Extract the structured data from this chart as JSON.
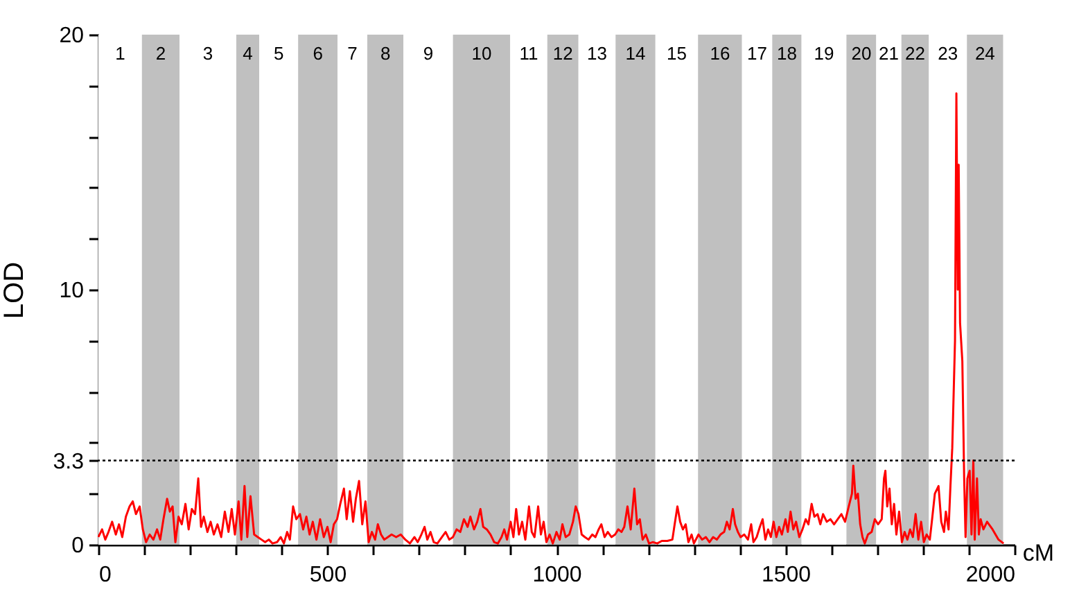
{
  "chart_data": {
    "type": "line",
    "xlabel": "cM",
    "ylabel": "LOD",
    "xlim": [
      0,
      2000
    ],
    "ylim": [
      0,
      20
    ],
    "xticks": [
      0,
      {
        "value": 100,
        "label": null
      },
      {
        "value": 200,
        "label": null
      },
      {
        "value": 300,
        "label": null
      },
      {
        "value": 400,
        "label": null
      },
      500,
      {
        "value": 600,
        "label": null
      },
      {
        "value": 700,
        "label": null
      },
      {
        "value": 800,
        "label": null
      },
      {
        "value": 900,
        "label": null
      },
      1000,
      {
        "value": 1100,
        "label": null
      },
      {
        "value": 1200,
        "label": null
      },
      {
        "value": 1300,
        "label": null
      },
      {
        "value": 1400,
        "label": null
      },
      1500,
      {
        "value": 1600,
        "label": null
      },
      {
        "value": 1700,
        "label": null
      },
      {
        "value": 1800,
        "label": null
      },
      {
        "value": 1900,
        "label": null
      },
      2000
    ],
    "yticks": [
      0,
      {
        "value": 2,
        "label": null
      },
      3.3,
      {
        "value": 4,
        "label": null
      },
      {
        "value": 6,
        "label": null
      },
      {
        "value": 8,
        "label": null
      },
      10,
      {
        "value": 12,
        "label": null
      },
      {
        "value": 14,
        "label": null
      },
      {
        "value": 16,
        "label": null
      },
      {
        "value": 18,
        "label": null
      },
      20
    ],
    "ref_lines": [
      {
        "axis": "y",
        "value": 3.3,
        "color": "#000000",
        "line_style": "dotted"
      }
    ],
    "bands": [
      {
        "axis": "x",
        "from": 0,
        "to": 95,
        "label": "1",
        "color": "#ffffff"
      },
      {
        "axis": "x",
        "from": 95,
        "to": 177,
        "label": "2",
        "color": "#c0c0c0"
      },
      {
        "axis": "x",
        "from": 177,
        "to": 301,
        "label": "3",
        "color": "#ffffff"
      },
      {
        "axis": "x",
        "from": 301,
        "to": 351,
        "label": "4",
        "color": "#c0c0c0"
      },
      {
        "axis": "x",
        "from": 351,
        "to": 436,
        "label": "5",
        "color": "#ffffff"
      },
      {
        "axis": "x",
        "from": 436,
        "to": 522,
        "label": "6",
        "color": "#c0c0c0"
      },
      {
        "axis": "x",
        "from": 522,
        "to": 587,
        "label": "7",
        "color": "#ffffff"
      },
      {
        "axis": "x",
        "from": 587,
        "to": 666,
        "label": "8",
        "color": "#c0c0c0"
      },
      {
        "axis": "x",
        "from": 666,
        "to": 774,
        "label": "9",
        "color": "#ffffff"
      },
      {
        "axis": "x",
        "from": 774,
        "to": 899,
        "label": "10",
        "color": "#c0c0c0"
      },
      {
        "axis": "x",
        "from": 899,
        "to": 980,
        "label": "11",
        "color": "#ffffff"
      },
      {
        "axis": "x",
        "from": 980,
        "to": 1048,
        "label": "12",
        "color": "#c0c0c0"
      },
      {
        "axis": "x",
        "from": 1048,
        "to": 1129,
        "label": "13",
        "color": "#ffffff"
      },
      {
        "axis": "x",
        "from": 1129,
        "to": 1216,
        "label": "14",
        "color": "#c0c0c0"
      },
      {
        "axis": "x",
        "from": 1216,
        "to": 1309,
        "label": "15",
        "color": "#ffffff"
      },
      {
        "axis": "x",
        "from": 1309,
        "to": 1405,
        "label": "16",
        "color": "#c0c0c0"
      },
      {
        "axis": "x",
        "from": 1405,
        "to": 1471,
        "label": "17",
        "color": "#ffffff"
      },
      {
        "axis": "x",
        "from": 1471,
        "to": 1535,
        "label": "18",
        "color": "#c0c0c0"
      },
      {
        "axis": "x",
        "from": 1535,
        "to": 1633,
        "label": "19",
        "color": "#ffffff"
      },
      {
        "axis": "x",
        "from": 1633,
        "to": 1698,
        "label": "20",
        "color": "#c0c0c0"
      },
      {
        "axis": "x",
        "from": 1698,
        "to": 1753,
        "label": "21",
        "color": "#ffffff"
      },
      {
        "axis": "x",
        "from": 1753,
        "to": 1813,
        "label": "22",
        "color": "#c0c0c0"
      },
      {
        "axis": "x",
        "from": 1813,
        "to": 1896,
        "label": "23",
        "color": "#ffffff"
      },
      {
        "axis": "x",
        "from": 1896,
        "to": 1975,
        "label": "24",
        "color": "#c0c0c0"
      }
    ],
    "x": [
      0,
      8,
      15,
      22,
      30,
      38,
      45,
      52,
      60,
      68,
      75,
      82,
      90,
      97,
      104,
      112,
      120,
      128,
      135,
      142,
      150,
      156,
      162,
      168,
      175,
      182,
      190,
      197,
      204,
      211,
      218,
      224,
      230,
      238,
      245,
      252,
      260,
      268,
      276,
      284,
      291,
      298,
      306,
      312,
      319,
      325,
      332,
      340,
      348,
      356,
      364,
      372,
      380,
      390,
      398,
      405,
      412,
      418,
      425,
      432,
      440,
      447,
      454,
      461,
      468,
      476,
      484,
      492,
      500,
      507,
      514,
      521,
      528,
      536,
      542,
      549,
      556,
      562,
      569,
      576,
      583,
      590,
      597,
      604,
      610,
      617,
      624,
      632,
      640,
      650,
      660,
      670,
      680,
      690,
      697,
      705,
      712,
      718,
      725,
      732,
      740,
      750,
      758,
      766,
      774,
      782,
      790,
      798,
      806,
      812,
      820,
      827,
      834,
      840,
      848,
      856,
      864,
      872,
      880,
      886,
      892,
      900,
      906,
      912,
      918,
      925,
      932,
      940,
      946,
      952,
      960,
      966,
      972,
      978,
      985,
      992,
      1000,
      1007,
      1013,
      1020,
      1028,
      1036,
      1042,
      1048,
      1055,
      1062,
      1070,
      1078,
      1085,
      1092,
      1098,
      1105,
      1112,
      1120,
      1128,
      1135,
      1142,
      1148,
      1155,
      1162,
      1170,
      1176,
      1182,
      1188,
      1195,
      1202,
      1210,
      1220,
      1230,
      1242,
      1253,
      1258,
      1264,
      1270,
      1276,
      1282,
      1288,
      1295,
      1300,
      1310,
      1318,
      1326,
      1334,
      1342,
      1350,
      1358,
      1366,
      1372,
      1378,
      1385,
      1390,
      1396,
      1402,
      1410,
      1418,
      1425,
      1430,
      1437,
      1444,
      1450,
      1456,
      1462,
      1468,
      1474,
      1480,
      1486,
      1492,
      1500,
      1505,
      1511,
      1517,
      1523,
      1530,
      1537,
      1544,
      1550,
      1557,
      1563,
      1570,
      1576,
      1582,
      1590,
      1598,
      1606,
      1614,
      1622,
      1630,
      1638,
      1645,
      1648,
      1653,
      1658,
      1663,
      1668,
      1673,
      1680,
      1688,
      1695,
      1702,
      1710,
      1715,
      1718,
      1722,
      1727,
      1732,
      1737,
      1742,
      1748,
      1754,
      1760,
      1766,
      1772,
      1778,
      1784,
      1790,
      1796,
      1802,
      1808,
      1815,
      1820,
      1826,
      1834,
      1840,
      1846,
      1850,
      1856,
      1860,
      1864,
      1870,
      1873,
      1876,
      1878,
      1881,
      1886,
      1890,
      1893,
      1897,
      1902,
      1906,
      1910,
      1913,
      1918,
      1922,
      1926,
      1932,
      1940,
      1952,
      1965,
      1976
    ],
    "series": [
      {
        "color": "#ff0000",
        "values": [
          0.3,
          0.6,
          0.2,
          0.5,
          0.9,
          0.4,
          0.8,
          0.3,
          1.1,
          1.5,
          1.7,
          1.2,
          1.5,
          0.6,
          0.1,
          0.4,
          0.2,
          0.6,
          0.2,
          1.0,
          1.8,
          1.3,
          1.5,
          0.1,
          1.1,
          0.8,
          1.6,
          0.6,
          1.4,
          1.2,
          2.6,
          0.7,
          1.1,
          0.5,
          0.9,
          0.4,
          0.8,
          0.3,
          1.3,
          0.5,
          1.4,
          0.4,
          1.7,
          0.2,
          2.3,
          0.3,
          1.9,
          0.4,
          0.3,
          0.2,
          0.1,
          0.2,
          0.05,
          0.1,
          0.3,
          0.05,
          0.5,
          0.2,
          1.5,
          1.0,
          1.2,
          0.6,
          1.1,
          0.4,
          0.9,
          0.2,
          1.0,
          0.3,
          0.7,
          0.1,
          0.8,
          1.0,
          1.6,
          2.2,
          1.0,
          2.1,
          0.9,
          1.8,
          2.5,
          0.8,
          1.7,
          0.1,
          0.5,
          0.2,
          0.8,
          0.4,
          0.2,
          0.3,
          0.4,
          0.3,
          0.4,
          0.2,
          0.05,
          0.3,
          0.1,
          0.4,
          0.7,
          0.2,
          0.5,
          0.1,
          0.05,
          0.3,
          0.5,
          0.2,
          0.3,
          0.6,
          0.5,
          1.0,
          0.7,
          1.1,
          0.6,
          0.9,
          1.4,
          0.7,
          0.6,
          0.4,
          0.1,
          0.05,
          0.3,
          0.6,
          0.2,
          0.9,
          0.3,
          1.4,
          0.4,
          0.9,
          0.2,
          1.5,
          0.5,
          0.3,
          1.5,
          0.4,
          0.9,
          0.1,
          0.4,
          0.05,
          0.5,
          0.2,
          0.8,
          0.3,
          0.4,
          0.9,
          1.5,
          1.2,
          0.4,
          0.3,
          0.2,
          0.4,
          0.3,
          0.6,
          0.8,
          0.3,
          0.5,
          0.3,
          0.4,
          0.6,
          0.5,
          0.7,
          1.5,
          0.6,
          2.2,
          0.8,
          1.0,
          0.2,
          0.4,
          0.05,
          0.1,
          0.05,
          0.15,
          0.15,
          0.2,
          0.8,
          1.5,
          0.9,
          0.6,
          0.8,
          0.1,
          0.4,
          0.05,
          0.4,
          0.2,
          0.3,
          0.1,
          0.3,
          0.2,
          0.4,
          0.5,
          0.9,
          0.6,
          1.4,
          0.8,
          0.5,
          0.3,
          0.4,
          0.2,
          0.8,
          0.1,
          0.3,
          0.7,
          1.0,
          0.2,
          0.6,
          0.3,
          0.9,
          0.3,
          0.7,
          0.4,
          1.0,
          0.5,
          1.3,
          0.6,
          0.9,
          0.3,
          0.6,
          1.0,
          0.8,
          1.6,
          1.1,
          1.2,
          0.8,
          1.2,
          0.9,
          1.0,
          0.8,
          1.0,
          1.2,
          0.9,
          1.5,
          2.0,
          3.1,
          1.8,
          2.0,
          0.8,
          0.3,
          0.05,
          0.4,
          0.5,
          1.0,
          0.8,
          1.0,
          2.6,
          2.9,
          1.5,
          2.2,
          0.8,
          1.6,
          0.4,
          1.3,
          0.1,
          0.5,
          0.2,
          0.6,
          0.3,
          1.2,
          0.2,
          0.9,
          0.1,
          0.4,
          0.2,
          1.0,
          2.0,
          2.3,
          0.9,
          0.5,
          1.3,
          0.6,
          2.3,
          3.8,
          8.0,
          17.7,
          10.0,
          14.9,
          8.7,
          7.2,
          2.6,
          0.3,
          2.6,
          2.9,
          0.4,
          3.3,
          0.2,
          2.6,
          0.4,
          1.0,
          0.6,
          0.9,
          0.6,
          0.2,
          0.05
        ]
      }
    ]
  }
}
